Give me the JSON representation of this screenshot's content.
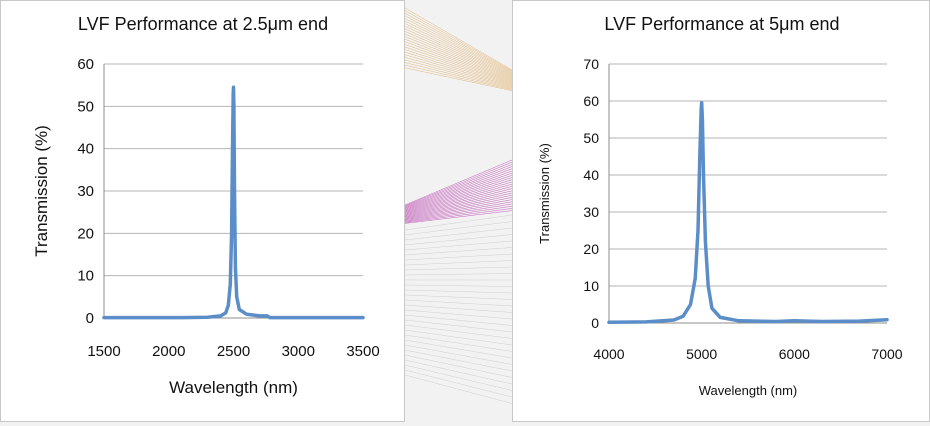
{
  "chart_data": [
    {
      "type": "line",
      "title": "LVF Performance at 2.5μm end",
      "xlabel": "Wavelength (nm)",
      "ylabel": "Transmission (%)",
      "xlim": [
        1500,
        3500
      ],
      "ylim": [
        0,
        60
      ],
      "x_ticks": [
        1500,
        2000,
        2500,
        3000,
        3500
      ],
      "y_ticks": [
        0,
        10,
        20,
        30,
        40,
        50,
        60
      ],
      "grid": true,
      "legend": "none",
      "series": [
        {
          "color": "#5b8ec8",
          "points": [
            [
              1500,
              0.1
            ],
            [
              1800,
              0.1
            ],
            [
              2100,
              0.1
            ],
            [
              2300,
              0.2
            ],
            [
              2400,
              0.5
            ],
            [
              2440,
              1.2
            ],
            [
              2460,
              3
            ],
            [
              2475,
              8
            ],
            [
              2485,
              20
            ],
            [
              2492,
              40
            ],
            [
              2498,
              53
            ],
            [
              2500,
              54.5
            ],
            [
              2503,
              50
            ],
            [
              2508,
              30
            ],
            [
              2515,
              12
            ],
            [
              2525,
              5
            ],
            [
              2545,
              2
            ],
            [
              2600,
              0.9
            ],
            [
              2700,
              0.5
            ],
            [
              2760,
              0.5
            ],
            [
              2780,
              0.1
            ],
            [
              3000,
              0.1
            ],
            [
              3500,
              0.1
            ]
          ]
        }
      ]
    },
    {
      "type": "line",
      "title": "LVF Performance at 5μm end",
      "xlabel": "Wavelength (nm)",
      "ylabel": "Transmission (%)",
      "xlim": [
        4000,
        7000
      ],
      "ylim": [
        0,
        70
      ],
      "x_ticks": [
        4000,
        5000,
        6000,
        7000
      ],
      "y_ticks": [
        0,
        10,
        20,
        30,
        40,
        50,
        60,
        70
      ],
      "grid": true,
      "legend": "none",
      "series": [
        {
          "color": "#5b8ec8",
          "points": [
            [
              4000,
              0.2
            ],
            [
              4400,
              0.3
            ],
            [
              4700,
              0.8
            ],
            [
              4800,
              1.8
            ],
            [
              4880,
              5
            ],
            [
              4930,
              12
            ],
            [
              4960,
              25
            ],
            [
              4980,
              45
            ],
            [
              4995,
              58
            ],
            [
              5000,
              59.5
            ],
            [
              5008,
              55
            ],
            [
              5020,
              40
            ],
            [
              5040,
              22
            ],
            [
              5070,
              10
            ],
            [
              5110,
              4
            ],
            [
              5200,
              1.5
            ],
            [
              5400,
              0.6
            ],
            [
              5800,
              0.4
            ],
            [
              6000,
              0.6
            ],
            [
              6300,
              0.4
            ],
            [
              6700,
              0.5
            ],
            [
              7000,
              0.9
            ]
          ]
        }
      ]
    }
  ],
  "colors": {
    "grid": "#b4b4b4",
    "axis": "#8c8c8c",
    "line": "#5b8ec8"
  }
}
